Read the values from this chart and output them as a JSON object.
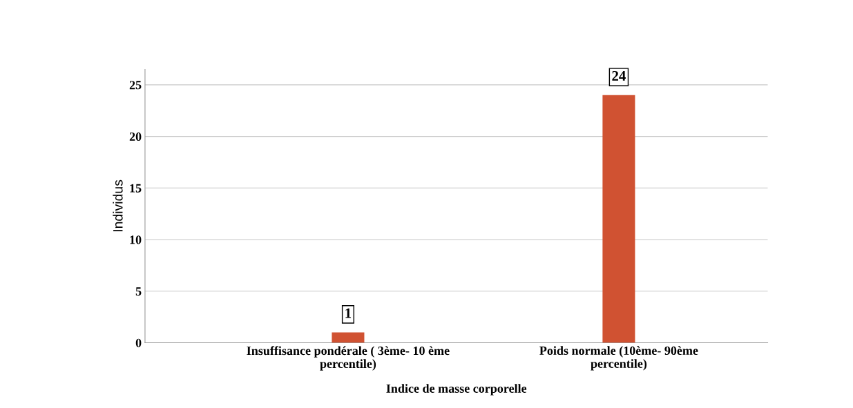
{
  "chart_data": {
    "type": "bar",
    "xlabel": "Indice de masse corporelle",
    "ylabel": "Individus",
    "categories": [
      "Insuffisance pondérale ( 3ème- 10 ème\npercentile)",
      "Poids normale (10ème- 90ème\npercentile)"
    ],
    "values": [
      1,
      24
    ],
    "color": "#d05232",
    "ylim": [
      0,
      26.5
    ],
    "yticks": [
      0,
      5,
      10,
      15,
      20,
      25
    ],
    "grid": "y",
    "data_labels": true
  }
}
